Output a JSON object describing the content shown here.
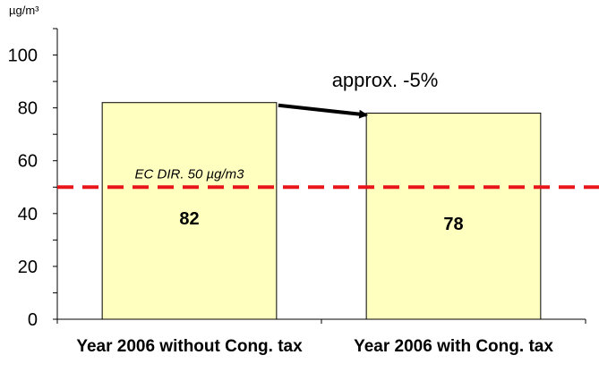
{
  "chart_data": {
    "type": "bar",
    "categories": [
      "Year 2006 without Cong. tax",
      "Year 2006 with Cong. tax"
    ],
    "values": [
      82,
      78
    ],
    "data_labels": [
      "82",
      "78"
    ],
    "unit_label": "µg/m³",
    "ylim": [
      0,
      110
    ],
    "yticks": [
      0,
      20,
      40,
      60,
      80,
      100
    ],
    "ytick_labels": [
      "0",
      "20",
      "40",
      "60",
      "80",
      "100"
    ],
    "bar_color": "#ffffc0",
    "grid": false,
    "reference_line": {
      "value": 50,
      "label": "EC DIR. 50 µg/m3",
      "color": "#e8161b",
      "style": "dashed"
    },
    "annotation": {
      "text": "approx. -5%",
      "arrow_from_category": 0,
      "arrow_to_category": 1
    }
  }
}
